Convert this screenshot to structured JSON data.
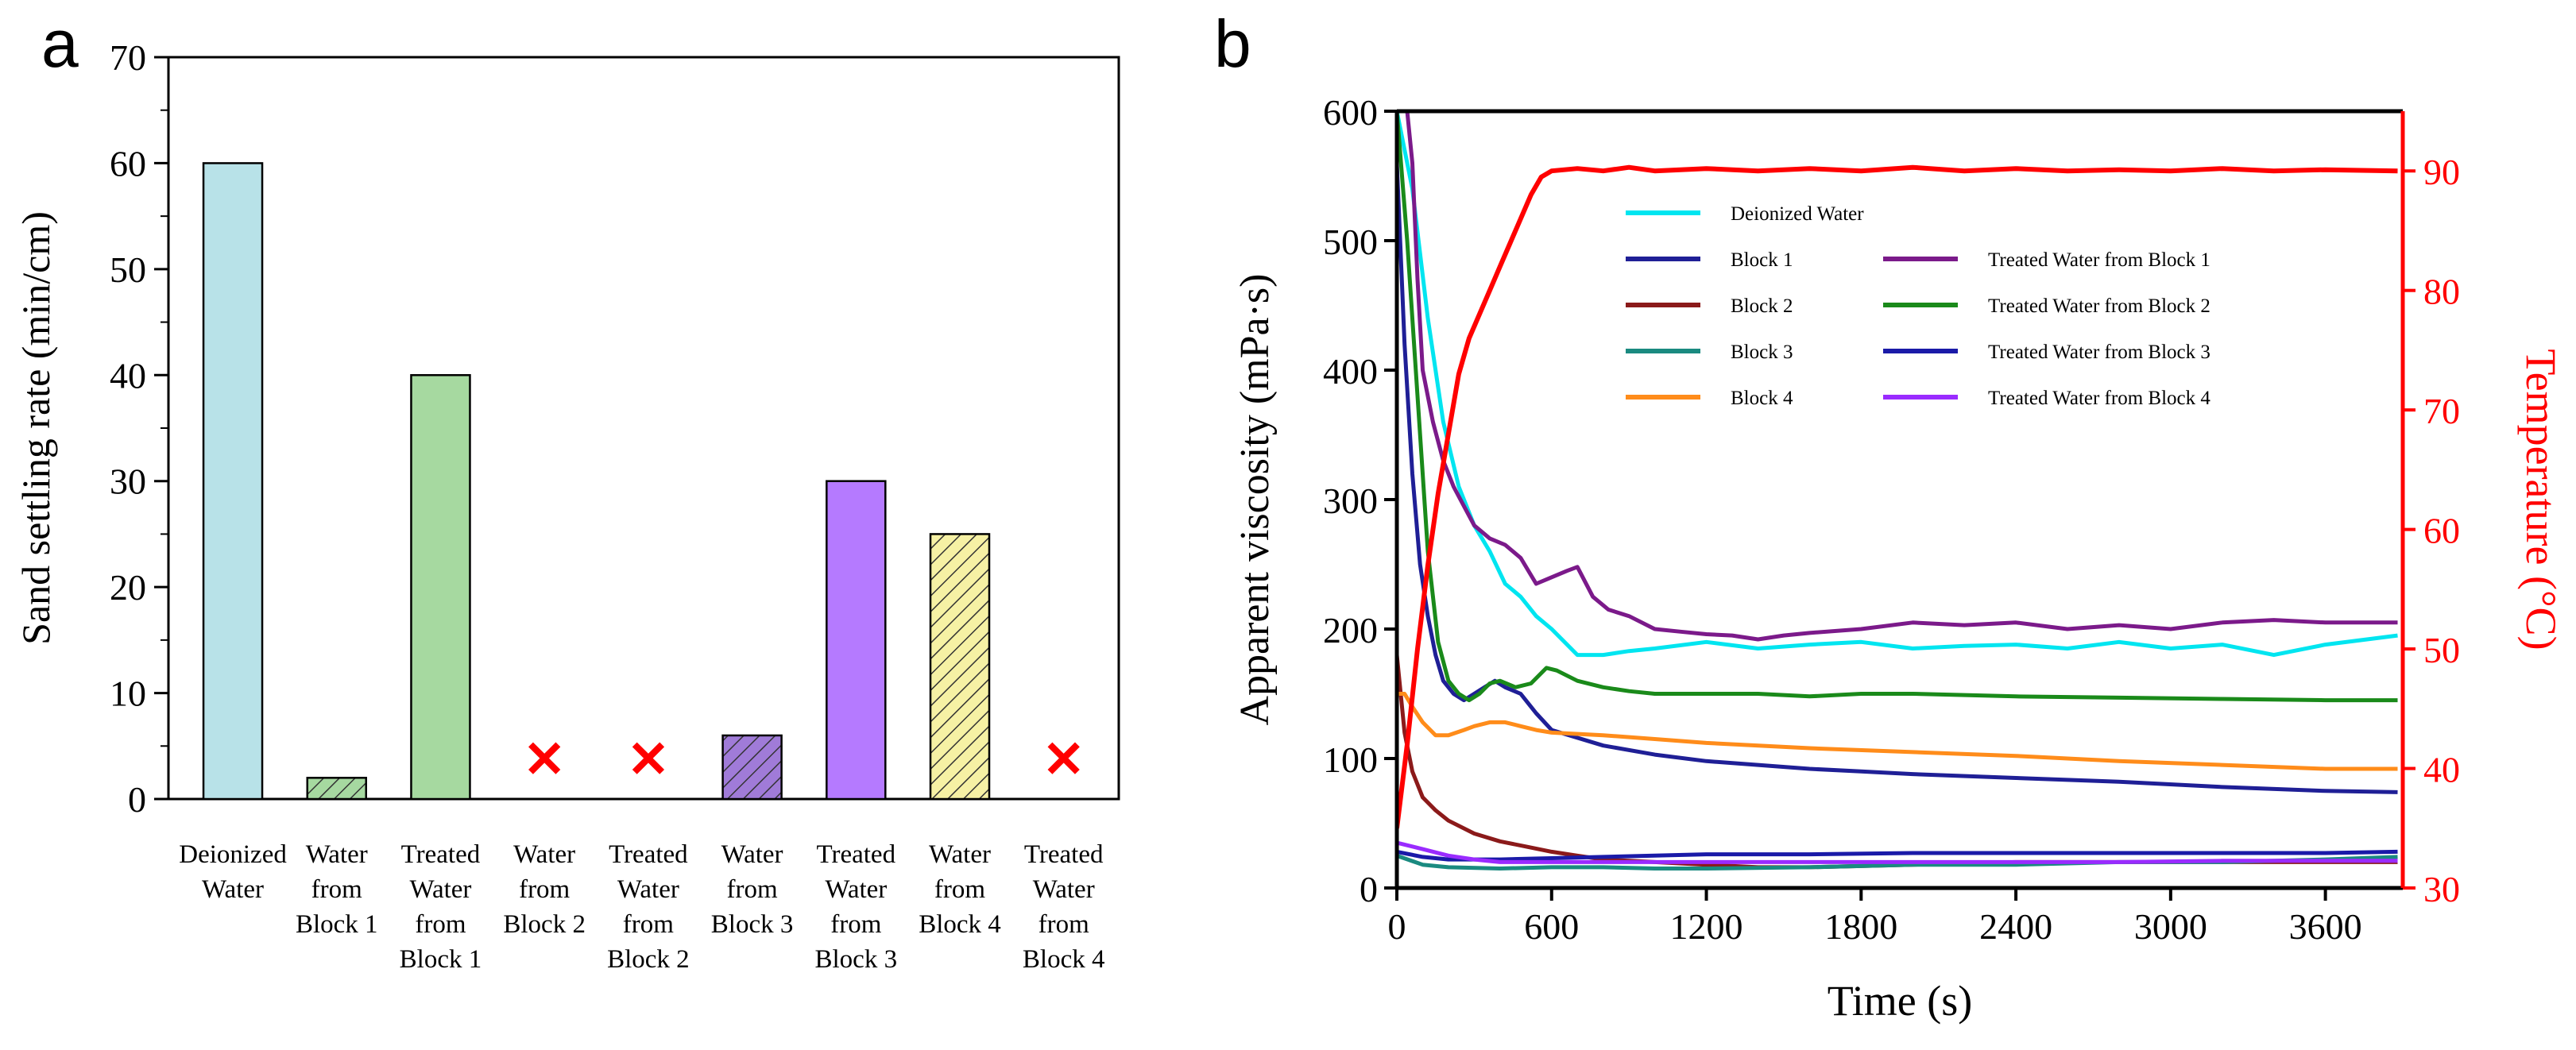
{
  "panels": {
    "a_label": "a",
    "b_label": "b"
  },
  "chart_data": [
    {
      "id": "a",
      "type": "bar",
      "title": "",
      "xlabel": "",
      "ylabel": "Sand settling rate (min/cm)",
      "ylim": [
        0,
        70
      ],
      "yticks": [
        0,
        10,
        20,
        30,
        40,
        50,
        60,
        70
      ],
      "grid": false,
      "categories": [
        [
          "Deionized",
          "Water"
        ],
        [
          "Water",
          "from",
          "Block 1"
        ],
        [
          "Treated",
          "Water",
          "from",
          "Block 1"
        ],
        [
          "Water",
          "from",
          "Block 2"
        ],
        [
          "Treated",
          "Water",
          "from",
          "Block 2"
        ],
        [
          "Water",
          "from",
          "Block 3"
        ],
        [
          "Treated",
          "Water",
          "from",
          "Block 3"
        ],
        [
          "Water",
          "from",
          "Block 4"
        ],
        [
          "Treated",
          "Water",
          "from",
          "Block 4"
        ]
      ],
      "values": [
        60,
        2,
        40,
        null,
        null,
        6,
        30,
        25,
        null
      ],
      "colors": [
        "#b8e2e8",
        "#a6d9a0",
        "#a6d9a0",
        "#ff0000",
        "#ff0000",
        "#a07bd8",
        "#b57aff",
        "#f6f1a4",
        "#ff0000"
      ],
      "hatched": [
        false,
        true,
        false,
        false,
        false,
        true,
        false,
        true,
        false
      ],
      "no_data_marker": "✕"
    },
    {
      "id": "b",
      "type": "line",
      "title": "",
      "xlabel": "Time (s)",
      "ylabel": "Apparent viscosity (mPa·s)",
      "y2label": "Temperature (°C)",
      "xlim": [
        0,
        3900
      ],
      "xticks": [
        0,
        600,
        1200,
        1800,
        2400,
        3000,
        3600
      ],
      "ylim": [
        0,
        600
      ],
      "yticks": [
        0,
        100,
        200,
        300,
        400,
        500,
        600
      ],
      "y2lim": [
        30,
        95
      ],
      "y2ticks": [
        30,
        40,
        50,
        60,
        70,
        80,
        90
      ],
      "y2color": "#ff0000",
      "grid": false,
      "legend_position": "upper-center",
      "series": [
        {
          "name": "Deionized Water",
          "color": "#00e5f0",
          "axis": "y",
          "x": [
            0,
            60,
            120,
            180,
            240,
            300,
            360,
            420,
            480,
            540,
            600,
            700,
            800,
            900,
            1000,
            1200,
            1400,
            1600,
            1800,
            2000,
            2200,
            2400,
            2600,
            2800,
            3000,
            3200,
            3400,
            3600,
            3880
          ],
          "y": [
            600,
            540,
            440,
            360,
            310,
            280,
            260,
            235,
            225,
            210,
            200,
            180,
            180,
            183,
            185,
            190,
            185,
            188,
            190,
            185,
            187,
            188,
            185,
            190,
            185,
            188,
            180,
            188,
            195
          ]
        },
        {
          "name": "Block 1",
          "color": "#1f1f96",
          "axis": "y",
          "x": [
            0,
            30,
            60,
            90,
            120,
            150,
            180,
            220,
            260,
            300,
            340,
            380,
            420,
            480,
            540,
            600,
            800,
            1000,
            1200,
            1400,
            1600,
            1800,
            2000,
            2400,
            2800,
            3200,
            3600,
            3880
          ],
          "y": [
            560,
            420,
            320,
            250,
            210,
            180,
            160,
            150,
            145,
            150,
            155,
            160,
            155,
            150,
            135,
            122,
            110,
            103,
            98,
            95,
            92,
            90,
            88,
            85,
            82,
            78,
            75,
            74
          ]
        },
        {
          "name": "Block 2",
          "color": "#8b1a1a",
          "axis": "y",
          "x": [
            0,
            30,
            60,
            100,
            150,
            200,
            300,
            400,
            500,
            600,
            700,
            800,
            1000,
            1200,
            1400,
            1600,
            2000,
            2400,
            2800,
            3200,
            3600,
            3880
          ],
          "y": [
            180,
            120,
            90,
            70,
            60,
            52,
            42,
            36,
            32,
            28,
            25,
            22,
            20,
            18,
            16,
            16,
            18,
            20,
            20,
            20,
            20,
            20
          ]
        },
        {
          "name": "Block 3",
          "color": "#1a8a80",
          "axis": "y",
          "x": [
            0,
            100,
            200,
            400,
            600,
            800,
            1000,
            1200,
            1600,
            2000,
            2400,
            2800,
            3200,
            3600,
            3880
          ],
          "y": [
            25,
            18,
            16,
            15,
            16,
            16,
            15,
            15,
            16,
            18,
            18,
            20,
            20,
            22,
            24
          ]
        },
        {
          "name": "Block 4",
          "color": "#ff8c1a",
          "axis": "y",
          "x": [
            0,
            30,
            60,
            100,
            150,
            200,
            260,
            300,
            360,
            420,
            480,
            540,
            600,
            800,
            1000,
            1200,
            1600,
            2000,
            2400,
            2800,
            3200,
            3600,
            3880
          ],
          "y": [
            150,
            150,
            140,
            128,
            118,
            118,
            122,
            125,
            128,
            128,
            125,
            122,
            120,
            118,
            115,
            112,
            108,
            105,
            102,
            98,
            95,
            92,
            92
          ]
        },
        {
          "name": "Treated Water from Block 1",
          "color": "#7b1a8a",
          "axis": "y",
          "x": [
            0,
            40,
            60,
            80,
            100,
            140,
            180,
            220,
            260,
            300,
            360,
            420,
            480,
            540,
            600,
            660,
            700,
            760,
            820,
            900,
            1000,
            1100,
            1200,
            1300,
            1400,
            1500,
            1600,
            1800,
            2000,
            2200,
            2400,
            2600,
            2800,
            3000,
            3200,
            3400,
            3600,
            3880
          ],
          "y": [
            600,
            600,
            560,
            470,
            400,
            360,
            330,
            310,
            295,
            280,
            270,
            265,
            255,
            235,
            240,
            245,
            248,
            225,
            215,
            210,
            200,
            198,
            196,
            195,
            192,
            195,
            197,
            200,
            205,
            203,
            205,
            200,
            203,
            200,
            205,
            207,
            205,
            205
          ]
        },
        {
          "name": "Treated Water from Block 2",
          "color": "#1a8a1a",
          "axis": "y",
          "x": [
            0,
            40,
            80,
            120,
            160,
            200,
            240,
            280,
            320,
            360,
            400,
            460,
            520,
            580,
            620,
            700,
            800,
            900,
            1000,
            1200,
            1400,
            1600,
            1800,
            2000,
            2400,
            2800,
            3200,
            3600,
            3880
          ],
          "y": [
            600,
            500,
            380,
            260,
            190,
            160,
            150,
            145,
            150,
            158,
            160,
            155,
            158,
            170,
            168,
            160,
            155,
            152,
            150,
            150,
            150,
            148,
            150,
            150,
            148,
            147,
            146,
            145,
            145
          ]
        },
        {
          "name": "Treated Water from Block 3",
          "color": "#1a1aa8",
          "axis": "y",
          "x": [
            0,
            100,
            200,
            400,
            600,
            800,
            1000,
            1200,
            1600,
            2000,
            2400,
            2800,
            3200,
            3600,
            3880
          ],
          "y": [
            28,
            24,
            22,
            22,
            23,
            24,
            25,
            26,
            26,
            27,
            27,
            27,
            27,
            27,
            28
          ]
        },
        {
          "name": "Treated Water from Block 4",
          "color": "#9a2bff",
          "axis": "y",
          "x": [
            0,
            100,
            200,
            300,
            400,
            600,
            800,
            1000,
            1200,
            1600,
            2000,
            2400,
            2800,
            3200,
            3600,
            3880
          ],
          "y": [
            35,
            30,
            25,
            22,
            20,
            20,
            20,
            20,
            20,
            20,
            20,
            20,
            20,
            21,
            21,
            21
          ]
        },
        {
          "name": "",
          "color": "#ff0000",
          "axis": "y2",
          "x": [
            0,
            40,
            80,
            120,
            160,
            200,
            240,
            280,
            320,
            360,
            400,
            440,
            480,
            520,
            560,
            600,
            700,
            800,
            900,
            1000,
            1200,
            1400,
            1600,
            1800,
            2000,
            2200,
            2400,
            2600,
            2800,
            3000,
            3200,
            3400,
            3600,
            3880
          ],
          "y": [
            35,
            42,
            50,
            57,
            63,
            68,
            73,
            76,
            78,
            80,
            82,
            84,
            86,
            88,
            89.5,
            90,
            90.2,
            90,
            90.3,
            90,
            90.2,
            90,
            90.2,
            90,
            90.3,
            90,
            90.2,
            90,
            90.1,
            90,
            90.2,
            90,
            90.1,
            90
          ]
        }
      ]
    }
  ]
}
